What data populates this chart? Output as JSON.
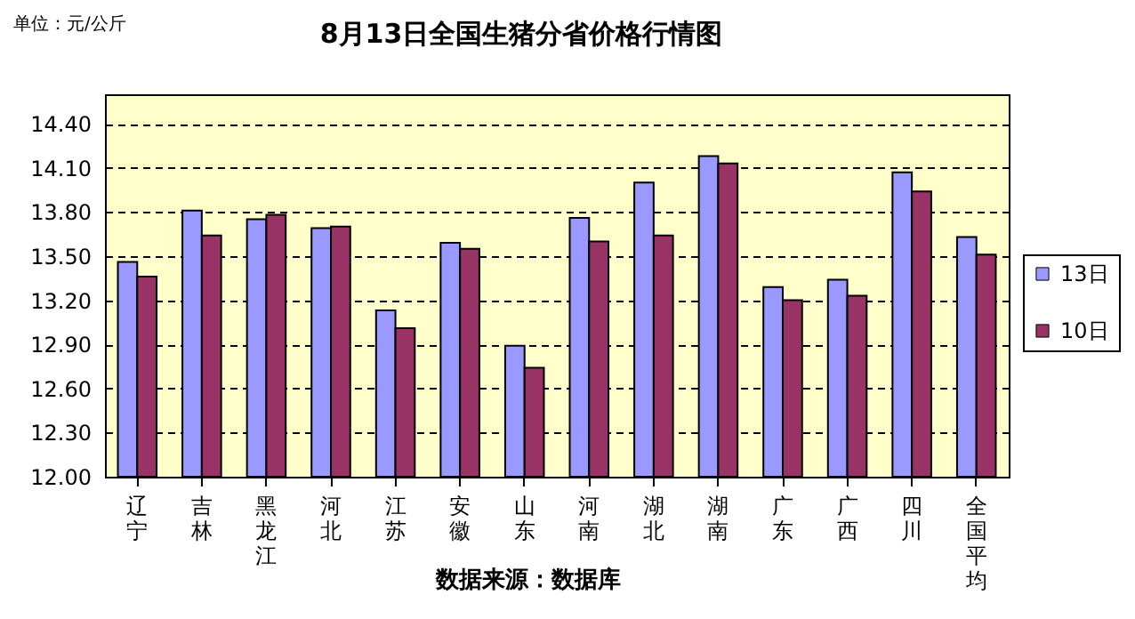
{
  "chart_data": {
    "type": "bar",
    "title": "8月13日全国生猪分省价格行情图",
    "ylabel": "单位：元/公斤",
    "annotations": [
      "数据来源：数据库"
    ],
    "categories": [
      "辽宁",
      "吉林",
      "黑龙江",
      "河北",
      "江苏",
      "安徽",
      "山东",
      "河南",
      "湖北",
      "湖南",
      "广东",
      "广西",
      "四川",
      "全国平均"
    ],
    "series": [
      {
        "name": "13日",
        "color": "#9999ff",
        "values": [
          13.46,
          13.81,
          13.75,
          13.69,
          13.13,
          13.59,
          12.89,
          13.76,
          14.0,
          14.18,
          13.29,
          13.34,
          14.07,
          13.63
        ]
      },
      {
        "name": "10日",
        "color": "#993366",
        "values": [
          13.36,
          13.64,
          13.78,
          13.7,
          13.01,
          13.55,
          12.74,
          13.6,
          13.64,
          14.13,
          13.2,
          13.23,
          13.94,
          13.51
        ]
      }
    ],
    "ylim": [
      12.0,
      14.6
    ],
    "yticks": [
      {
        "value": 12.0,
        "label": "12.00"
      },
      {
        "value": 12.3,
        "label": "12.30"
      },
      {
        "value": 12.6,
        "label": "12.60"
      },
      {
        "value": 12.9,
        "label": "12.90"
      },
      {
        "value": 13.2,
        "label": "13.20"
      },
      {
        "value": 13.5,
        "label": "13.50"
      },
      {
        "value": 13.8,
        "label": "13.80"
      },
      {
        "value": 14.1,
        "label": "14.10"
      },
      {
        "value": 14.4,
        "label": "14.40"
      }
    ],
    "grid": "y",
    "legend": "right"
  }
}
